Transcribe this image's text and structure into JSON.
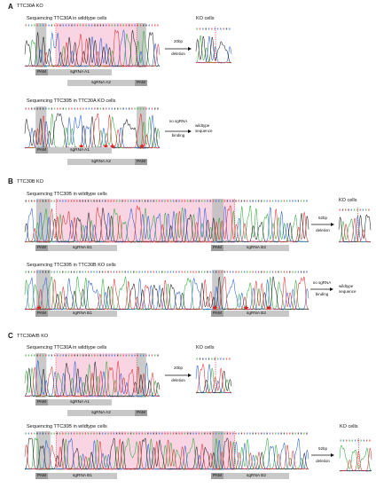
{
  "figure": {
    "panels": [
      {
        "letter": "A",
        "title": "TTC30A KO",
        "row1_caption": "Sequencing TTC30A in wildtype cells",
        "row1_arrow_top": "20bp",
        "row1_arrow_bottom": "deletion",
        "row1_result": "KO cells",
        "row1_tags": [
          "PAM",
          "sgRNA A1",
          "sgRNA A2",
          "PAM"
        ],
        "row2_caption": "Sequencing TTC30B in TTC30A KO cells",
        "row2_arrow_top": "no sgRNA",
        "row2_arrow_bottom": "binding",
        "row2_result_line1": "wildtype",
        "row2_result_line2": "sequence",
        "row2_tags": [
          "PAM",
          "sgRNA A1",
          "sgRNA A2",
          "PAM"
        ]
      },
      {
        "letter": "B",
        "title": "TTC30B KO",
        "row1_caption": "Sequencing TTC30B in wildtype cells",
        "row1_arrow_top": "52bp",
        "row1_arrow_bottom": "deletion",
        "row1_result": "KO cells",
        "row1_tags": [
          "PAM",
          "sgRNA B1",
          "PAM",
          "sgRNA B2"
        ],
        "row2_caption": "Sequencing TTC30B in TTC30B KO cells",
        "row2_arrow_top": "no sgRNA",
        "row2_arrow_bottom": "binding",
        "row2_result_line1": "wildtype",
        "row2_result_line2": "sequence",
        "row2_tags": [
          "PAM",
          "sgRNA B1",
          "PAM",
          "sgRNA B2"
        ]
      },
      {
        "letter": "C",
        "title": "TTC30A/B KO",
        "row1_caption": "Sequencing TTC30A in wildtype cells",
        "row1_arrow_top": "20bp",
        "row1_arrow_bottom": "deletion",
        "row1_result": "KO cells",
        "row1_tags": [
          "PAM",
          "sgRNA A1",
          "sgRNA A2",
          "PAM"
        ],
        "row2_caption": "Sequencing TTC30B in wildtype cells",
        "row2_arrow_top": "52bp",
        "row2_arrow_bottom": "deletion",
        "row2_result": "KO cells",
        "row2_tags": [
          "PAM",
          "sgRNA B1",
          "PAM",
          "sgRNA B2"
        ]
      }
    ],
    "colors": {
      "highlight": "#f7c6d8",
      "pam": "#bdbdbd",
      "trace_a": "#2eaa3a",
      "trace_c": "#2a5fd6",
      "trace_g": "#222222",
      "trace_t": "#e03030",
      "star": "#e02020",
      "mutation_line": "#e02020"
    }
  }
}
